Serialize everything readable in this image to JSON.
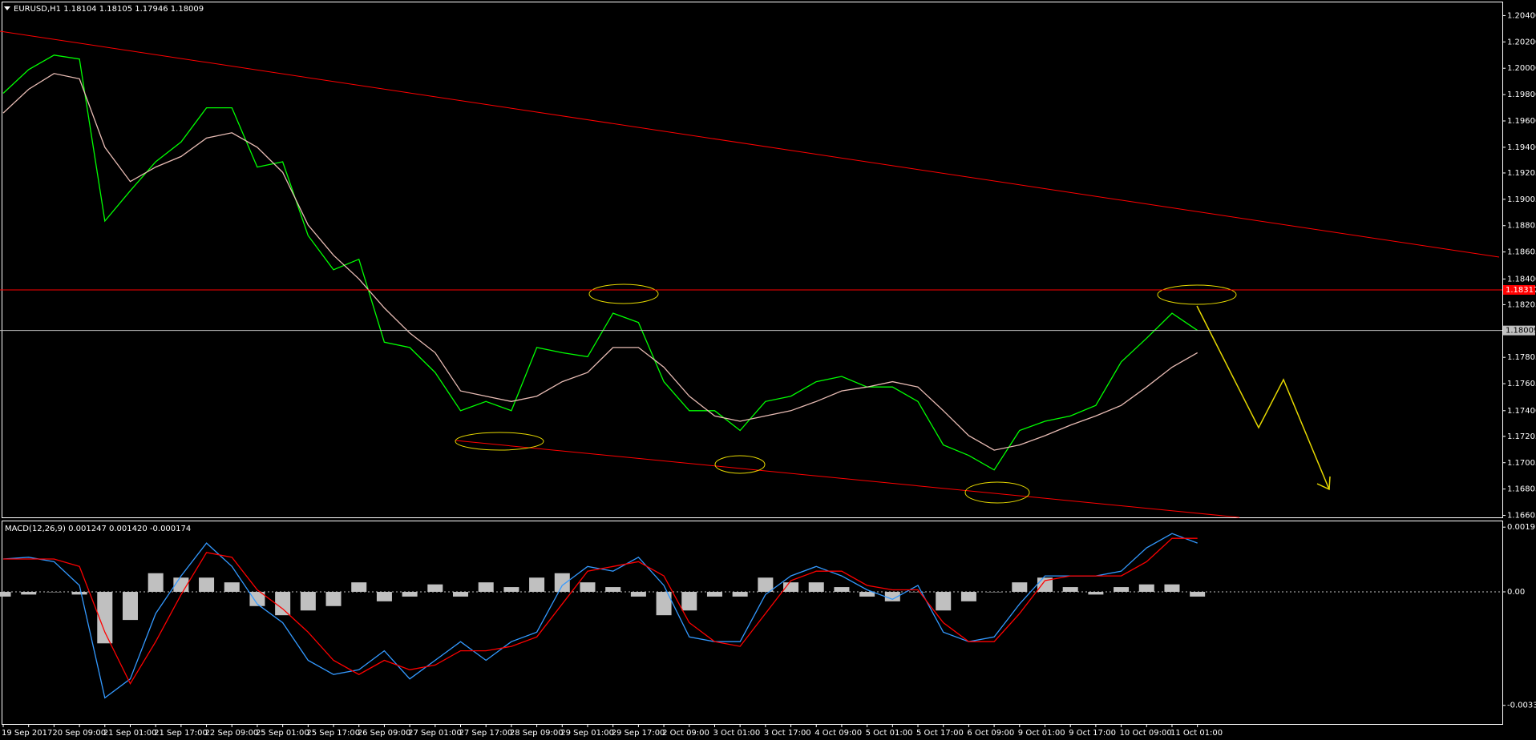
{
  "chart_data": [
    {
      "type": "line",
      "title": "EURUSD,H1  1.18104 1.18105 1.17946 1.18009",
      "categories": [
        "19 Sep 2017",
        null,
        "20 Sep 09:00",
        null,
        "21 Sep 01:00",
        null,
        "21 Sep 17:00",
        null,
        "22 Sep 09:00",
        null,
        "25 Sep 01:00",
        null,
        "25 Sep 17:00",
        null,
        "26 Sep 09:00",
        null,
        "27 Sep 01:00",
        null,
        "27 Sep 17:00",
        null,
        "28 Sep 09:00",
        null,
        "29 Sep 01:00",
        null,
        "29 Sep 17:00",
        null,
        "2 Oct 09:00",
        null,
        "3 Oct 01:00",
        null,
        "3 Oct 17:00",
        null,
        "4 Oct 09:00",
        null,
        "5 Oct 01:00",
        null,
        "5 Oct 17:00",
        null,
        "6 Oct 09:00",
        null,
        "9 Oct 01:00",
        null,
        "9 Oct 17:00",
        null,
        "10 Oct 09:00",
        null,
        "11 Oct 01:00",
        null
      ],
      "series": [
        {
          "color": "#00ff00",
          "values": [
            1.1981,
            1.1999,
            1.201,
            1.2007,
            1.1884,
            1.1907,
            1.1929,
            1.1944,
            1.197,
            1.197,
            1.1925,
            1.1929,
            1.1873,
            1.1847,
            1.1855,
            1.1792,
            1.1788,
            1.1769,
            1.174,
            1.1747,
            1.174,
            1.1788,
            1.1784,
            1.1781,
            1.1814,
            1.1807,
            1.1762,
            1.174,
            1.174,
            1.1725,
            1.1747,
            1.1751,
            1.1762,
            1.1766,
            1.1758,
            1.1758,
            1.1747,
            1.1714,
            1.1706,
            1.1695,
            1.1725,
            1.1732,
            1.1736,
            1.1744,
            1.1777,
            1.1795,
            1.1814,
            1.18009
          ]
        },
        {
          "color": "#e8bcb4",
          "values": [
            1.1966,
            1.1984,
            1.1996,
            1.1992,
            1.194,
            1.1914,
            1.1925,
            1.1933,
            1.1947,
            1.1951,
            1.194,
            1.1921,
            1.1881,
            1.1858,
            1.184,
            1.1818,
            1.1799,
            1.1784,
            1.1755,
            1.1751,
            1.1747,
            1.1751,
            1.1762,
            1.1769,
            1.1788,
            1.1788,
            1.1773,
            1.1751,
            1.1736,
            1.1732,
            1.1736,
            1.174,
            1.1747,
            1.1755,
            1.1758,
            1.1762,
            1.1758,
            1.174,
            1.1721,
            1.171,
            1.1714,
            1.1721,
            1.1729,
            1.1736,
            1.1744,
            1.1758,
            1.1773,
            1.1784
          ]
        }
      ],
      "hlines": [
        {
          "value": 1.18317,
          "color": "#ff0000"
        },
        {
          "value": 1.18009,
          "color": "#c0c0c0"
        }
      ],
      "ylim": [
        1.1659,
        1.205
      ],
      "yticks": [
        {
          "value": 1.204,
          "label": "1.20400"
        },
        {
          "value": 1.202,
          "label": "1.20200"
        },
        {
          "value": 1.2,
          "label": "1.20000"
        },
        {
          "value": 1.198,
          "label": "1.19800"
        },
        {
          "value": 1.196,
          "label": "1.19600"
        },
        {
          "value": 1.194,
          "label": "1.19400"
        },
        1.19205,
        1.19005,
        1.18805,
        1.18605,
        {
          "value": 1.184,
          "label": "1.18400"
        },
        1.18205,
        1.17805,
        1.17605,
        {
          "value": 1.174,
          "label": "1.17400"
        },
        1.17205,
        1.17005,
        1.16805,
        1.16605
      ]
    },
    {
      "type": "macd",
      "title": "MACD(12,26,9) 0.001247 0.001420 -0.000174",
      "histogram": {
        "color": "#c0c0c0",
        "values": [
          -0.00014,
          -8e-05,
          0,
          -8e-05,
          -0.00152,
          -0.00083,
          0.00055,
          0.00042,
          0.00042,
          0.00028,
          -0.00042,
          -0.00069,
          -0.00055,
          -0.00042,
          0.00028,
          -0.00028,
          -0.00014,
          0.00022,
          -0.00014,
          0.00028,
          0.00014,
          0.00042,
          0.00055,
          0.00028,
          0.00014,
          -0.00014,
          -0.00069,
          -0.00055,
          -0.00014,
          -0.00014,
          0.00042,
          0.00028,
          0.00028,
          0.00014,
          -0.00014,
          -0.00028,
          0,
          -0.00055,
          -0.00028,
          0,
          0.00028,
          0.00042,
          0.00014,
          -8e-05,
          0.00014,
          0.00022,
          0.00022,
          -0.00014
        ]
      },
      "series": [
        {
          "color": "#3399ff",
          "values": [
            0.00097,
            0.00102,
            0.00089,
            0.00019,
            -0.00313,
            -0.00257,
            -0.00064,
            0.00047,
            0.00144,
            0.00075,
            -0.00036,
            -0.00091,
            -0.00202,
            -0.00244,
            -0.0023,
            -0.00174,
            -0.00257,
            -0.00202,
            -0.00147,
            -0.00202,
            -0.00147,
            -0.00119,
            0.00019,
            0.00075,
            0.00061,
            0.00102,
            0.00019,
            -0.00133,
            -0.00147,
            -0.00147,
            -8e-05,
            0.00047,
            0.00075,
            0.00047,
            6e-05,
            -0.00022,
            0.00019,
            -0.00119,
            -0.00147,
            -0.00133,
            -0.00036,
            0.00047,
            0.00047,
            0.00047,
            0.00061,
            0.0013,
            0.00172,
            0.00144
          ]
        },
        {
          "color": "#ff0000",
          "values": [
            0.00097,
            0.00097,
            0.00097,
            0.00075,
            -0.00119,
            -0.00271,
            -0.00147,
            -8e-05,
            0.00116,
            0.00102,
            6e-05,
            -0.0005,
            -0.00119,
            -0.00202,
            -0.00244,
            -0.00202,
            -0.0023,
            -0.00216,
            -0.00174,
            -0.00174,
            -0.00161,
            -0.00133,
            -0.00036,
            0.00061,
            0.00075,
            0.00089,
            0.00047,
            -0.00091,
            -0.00147,
            -0.00161,
            -0.00064,
            0.00033,
            0.00061,
            0.00061,
            0.00019,
            6e-05,
            6e-05,
            -0.00091,
            -0.00147,
            -0.00147,
            -0.00064,
            0.00033,
            0.00047,
            0.00047,
            0.00047,
            0.00089,
            0.00158,
            0.00158
          ]
        }
      ],
      "ylim": [
        -0.0039,
        0.00208
      ],
      "yticks": [
        0.00191,
        {
          "value": 0,
          "label": "0.00"
        },
        -0.00335
      ]
    }
  ]
}
